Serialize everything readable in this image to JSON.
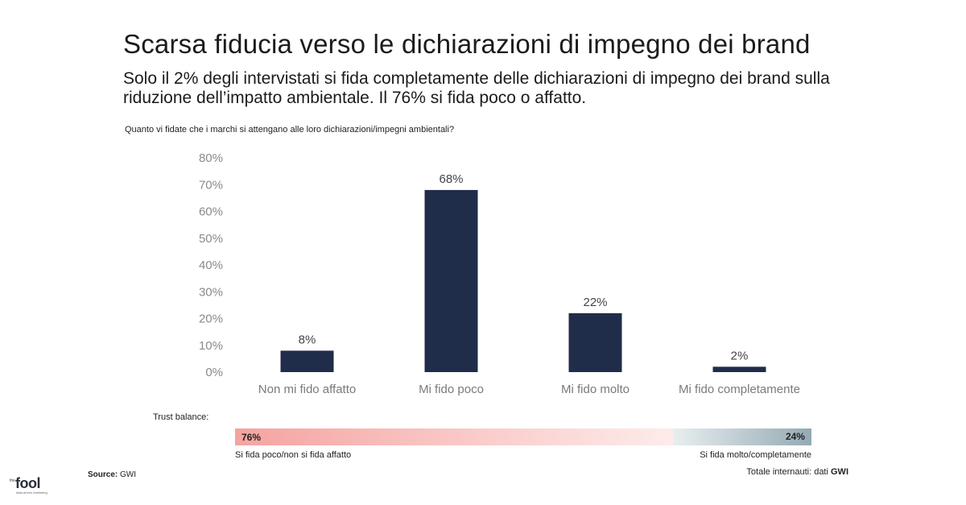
{
  "title": "Scarsa fiducia verso le dichiarazioni di impegno dei brand",
  "subtitle": "Solo il 2% degli intervistati si fida completamente delle dichiarazioni di impegno dei brand sulla riduzione dell’impatto ambientale. Il 76% si fida poco o affatto.",
  "question": "Quanto vi fidate che i marchi si attengano alle loro dichiarazioni/impegni ambientali?",
  "chart_data": {
    "type": "bar",
    "categories": [
      "Non mi fido affatto",
      "Mi fido poco",
      "Mi fido molto",
      "Mi fido completamente"
    ],
    "values": [
      8,
      68,
      22,
      2
    ],
    "value_labels": [
      "8%",
      "68%",
      "22%",
      "2%"
    ],
    "ylim": [
      0,
      80
    ],
    "yticks": [
      0,
      10,
      20,
      30,
      40,
      50,
      60,
      70,
      80
    ],
    "ytick_labels": [
      "0%",
      "10%",
      "20%",
      "30%",
      "40%",
      "50%",
      "60%",
      "70%",
      "80%"
    ],
    "xlabel": "",
    "ylabel": "",
    "grid": false,
    "bar_color": "#1f2d4a"
  },
  "trust_balance": {
    "title": "Trust balance:",
    "negative_value": 76,
    "negative_label_value": "76%",
    "negative_label": "Si fida poco/non si fida affatto",
    "negative_color": "#f5a3a0",
    "positive_value": 24,
    "positive_label_value": "24%",
    "positive_label": "Si fida molto/completamente",
    "positive_color": "#94aab3"
  },
  "total_prefix": "Totale internauti: dati",
  "total_source": "GWI",
  "source_label": "Source:",
  "source_value": "GWI",
  "logo": {
    "small": "the",
    "main": "fool",
    "tagline": "data-driven marketing"
  }
}
